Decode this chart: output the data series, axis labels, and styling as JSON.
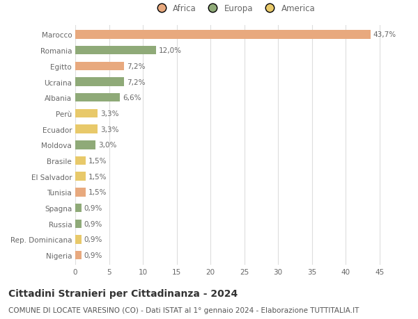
{
  "categories": [
    "Nigeria",
    "Rep. Dominicana",
    "Russia",
    "Spagna",
    "Tunisia",
    "El Salvador",
    "Brasile",
    "Moldova",
    "Ecuador",
    "Perù",
    "Albania",
    "Ucraina",
    "Egitto",
    "Romania",
    "Marocco"
  ],
  "values": [
    0.9,
    0.9,
    0.9,
    0.9,
    1.5,
    1.5,
    1.5,
    3.0,
    3.3,
    3.3,
    6.6,
    7.2,
    7.2,
    12.0,
    43.7
  ],
  "colors": [
    "#e8a97e",
    "#e8c96a",
    "#8faa78",
    "#8faa78",
    "#e8a97e",
    "#e8c96a",
    "#e8c96a",
    "#8faa78",
    "#e8c96a",
    "#e8c96a",
    "#8faa78",
    "#8faa78",
    "#e8a97e",
    "#8faa78",
    "#e8a97e"
  ],
  "labels": [
    "0,9%",
    "0,9%",
    "0,9%",
    "0,9%",
    "1,5%",
    "1,5%",
    "1,5%",
    "3,0%",
    "3,3%",
    "3,3%",
    "6,6%",
    "7,2%",
    "7,2%",
    "12,0%",
    "43,7%"
  ],
  "legend": [
    {
      "label": "Africa",
      "color": "#e8a97e"
    },
    {
      "label": "Europa",
      "color": "#8faa78"
    },
    {
      "label": "America",
      "color": "#e8c96a"
    }
  ],
  "title": "Cittadini Stranieri per Cittadinanza - 2024",
  "subtitle": "COMUNE DI LOCATE VARESINO (CO) - Dati ISTAT al 1° gennaio 2024 - Elaborazione TUTTITALIA.IT",
  "xlim": [
    0,
    47
  ],
  "xticks": [
    0,
    5,
    10,
    15,
    20,
    25,
    30,
    35,
    40,
    45
  ],
  "background_color": "#ffffff",
  "grid_color": "#dddddd",
  "bar_height": 0.55,
  "title_fontsize": 10,
  "subtitle_fontsize": 7.5,
  "label_fontsize": 7.5,
  "tick_fontsize": 7.5,
  "legend_fontsize": 8.5
}
